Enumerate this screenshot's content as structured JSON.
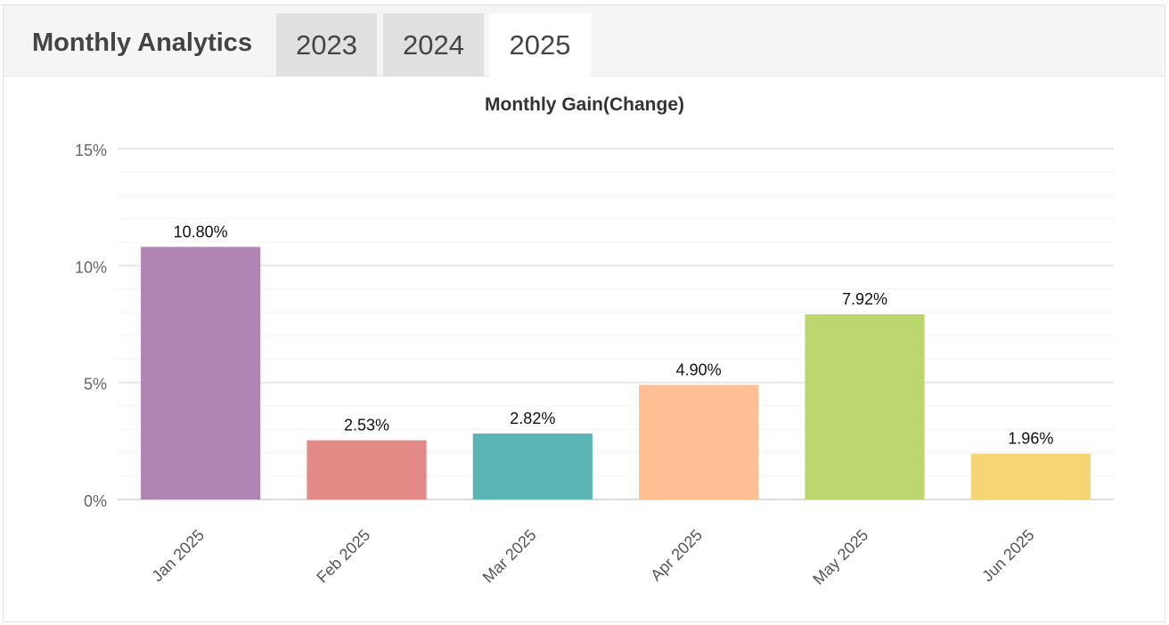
{
  "header": {
    "title": "Monthly Analytics",
    "tabs": [
      {
        "label": "2023",
        "active": false
      },
      {
        "label": "2024",
        "active": false
      },
      {
        "label": "2025",
        "active": true
      }
    ]
  },
  "chart_data": {
    "type": "bar",
    "title": "Monthly Gain(Change)",
    "categories": [
      "Jan 2025",
      "Feb 2025",
      "Mar 2025",
      "Apr 2025",
      "May 2025",
      "Jun 2025"
    ],
    "values": [
      10.8,
      2.53,
      2.82,
      4.9,
      7.92,
      1.96
    ],
    "value_labels": [
      "10.80%",
      "2.53%",
      "2.82%",
      "4.90%",
      "7.92%",
      "1.96%"
    ],
    "colors": [
      "#b085b3",
      "#e38986",
      "#5cb5b5",
      "#febf94",
      "#bdd76f",
      "#f6d574"
    ],
    "yticks": [
      "0%",
      "5%",
      "10%",
      "15%"
    ],
    "ylim": [
      0,
      15
    ],
    "grid": true,
    "xlabel": "",
    "ylabel": ""
  }
}
